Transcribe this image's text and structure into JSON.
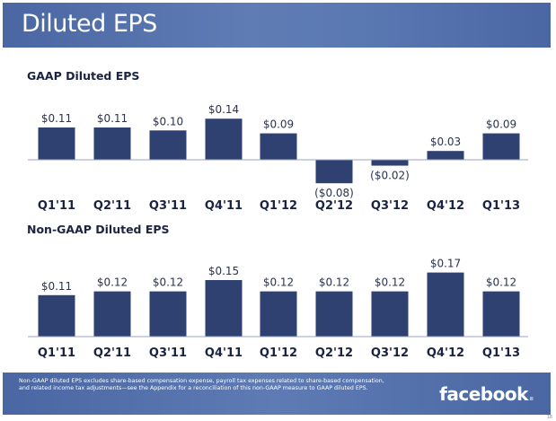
{
  "header": {
    "title": "Diluted EPS"
  },
  "colors": {
    "bar": "#2e4170",
    "axis": "#9aa6c4",
    "header": "#5470ab"
  },
  "chart_data": [
    {
      "type": "bar",
      "title": "GAAP Diluted EPS",
      "xlabel": "",
      "ylabel": "",
      "categories": [
        "Q1'11",
        "Q2'11",
        "Q3'11",
        "Q4'11",
        "Q1'12",
        "Q2'12",
        "Q3'12",
        "Q4'12",
        "Q1'13"
      ],
      "values": [
        0.11,
        0.11,
        0.1,
        0.14,
        0.09,
        -0.08,
        -0.02,
        0.03,
        0.09
      ],
      "data_labels": [
        "$0.11",
        "$0.11",
        "$0.10",
        "$0.14",
        "$0.09",
        "($0.08)",
        "($0.02)",
        "$0.03",
        "$0.09"
      ],
      "ylim": [
        -0.08,
        0.14
      ],
      "grid": false
    },
    {
      "type": "bar",
      "title": "Non-GAAP Diluted EPS",
      "xlabel": "",
      "ylabel": "",
      "categories": [
        "Q1'11",
        "Q2'11",
        "Q3'11",
        "Q4'11",
        "Q1'12",
        "Q2'12",
        "Q3'12",
        "Q4'12",
        "Q1'13"
      ],
      "values": [
        0.11,
        0.12,
        0.12,
        0.15,
        0.12,
        0.12,
        0.12,
        0.17,
        0.12
      ],
      "data_labels": [
        "$0.11",
        "$0.12",
        "$0.12",
        "$0.15",
        "$0.12",
        "$0.12",
        "$0.12",
        "$0.17",
        "$0.12"
      ],
      "ylim": [
        0,
        0.17
      ],
      "grid": false
    }
  ],
  "footer": {
    "footnote": "Non-GAAP diluted EPS excludes share-based compensation expense, payroll tax expenses related to share-based compensation, and related income  tax adjustments—see the Appendix for a reconciliation of this non-GAAP measure to GAAP diluted EPS.",
    "logo_text": "facebook",
    "logo_dot": ".",
    "page_number": "18"
  }
}
